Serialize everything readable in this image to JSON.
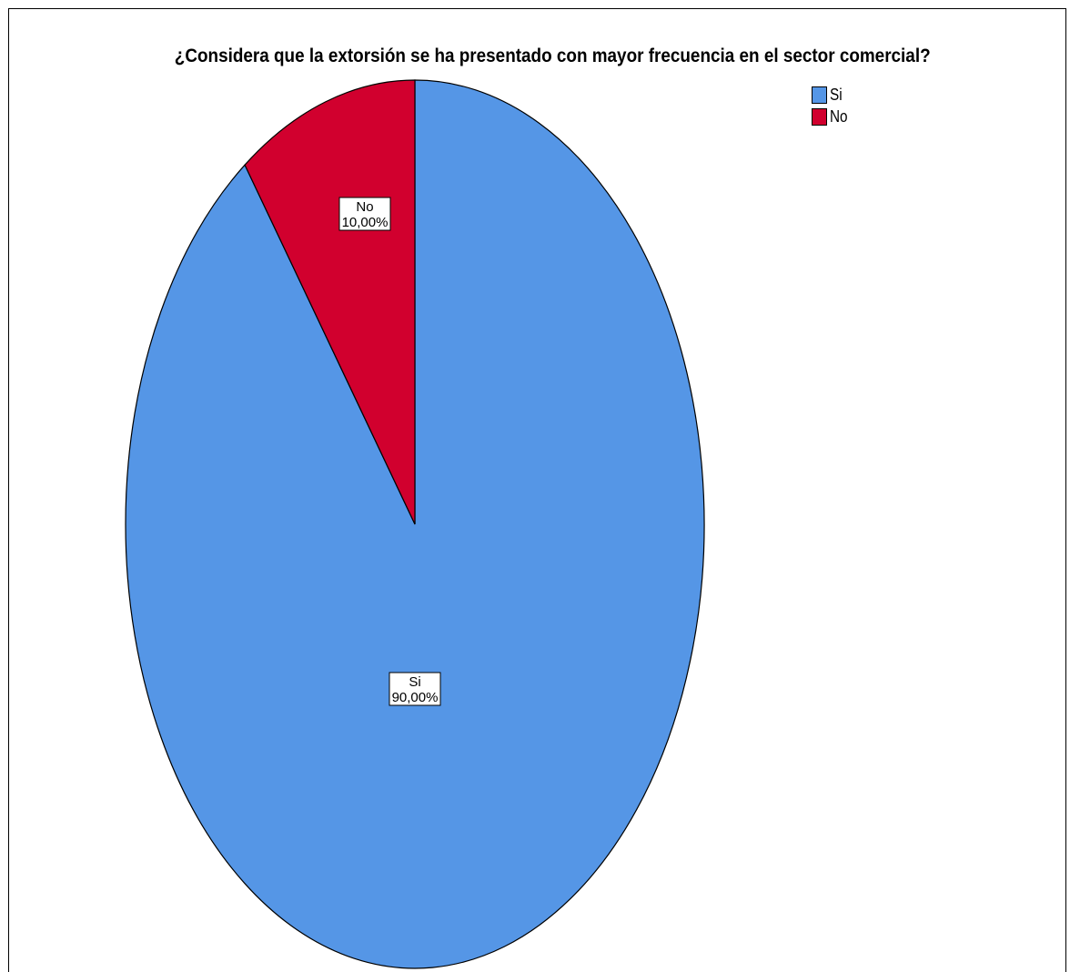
{
  "chart_data": {
    "type": "pie",
    "title": "¿Considera que la extorsión se ha presentado con mayor frecuencia en el sector comercial?",
    "categories": [
      "Si",
      "No"
    ],
    "values": [
      90.0,
      10.0
    ],
    "value_labels": [
      "90,00%",
      "10,00%"
    ],
    "colors": [
      "#5596e6",
      "#d1002e"
    ],
    "start_angle_deg": 0,
    "direction": "clockwise-from-top",
    "legend": {
      "placement": "top-right",
      "entries": [
        "Si",
        "No"
      ]
    }
  }
}
